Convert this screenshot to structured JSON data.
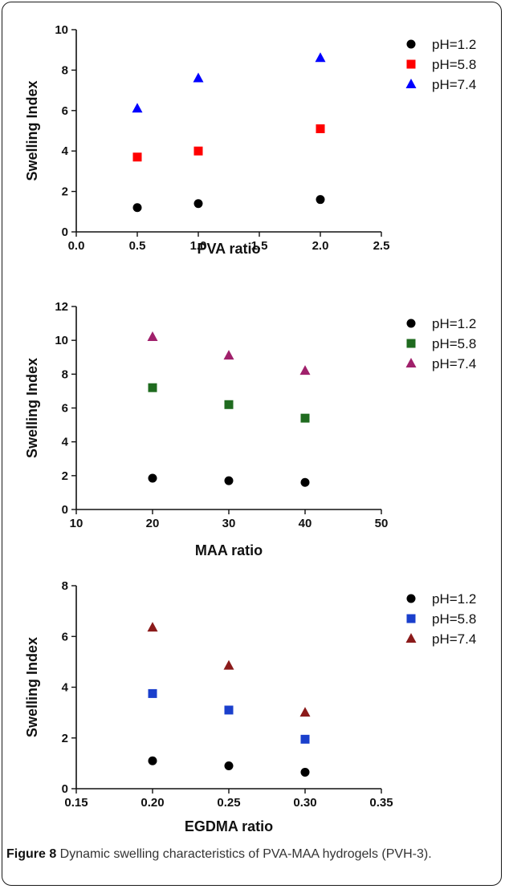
{
  "chart_data": [
    {
      "type": "scatter",
      "xlabel": "PVA ratio",
      "ylabel": "Swelling Index",
      "xlim": [
        0.0,
        2.5
      ],
      "ylim": [
        0,
        10
      ],
      "xticks": [
        "0.0",
        "0.5",
        "1.0",
        "1.5",
        "2.0",
        "2.5"
      ],
      "yticks": [
        "0",
        "2",
        "4",
        "6",
        "8",
        "10"
      ],
      "legend_position": "top-right",
      "series": [
        {
          "name": "pH=1.2",
          "marker": "circle",
          "color": "#000000",
          "x": [
            0.5,
            1.0,
            2.0
          ],
          "y": [
            1.2,
            1.4,
            1.6
          ]
        },
        {
          "name": "pH=5.8",
          "marker": "square",
          "color": "#ff0000",
          "x": [
            0.5,
            1.0,
            2.0
          ],
          "y": [
            3.7,
            4.0,
            5.1
          ]
        },
        {
          "name": "pH=7.4",
          "marker": "triangle",
          "color": "#0000ff",
          "x": [
            0.5,
            1.0,
            2.0
          ],
          "y": [
            6.1,
            7.6,
            8.6
          ]
        }
      ]
    },
    {
      "type": "scatter",
      "xlabel": "MAA ratio",
      "ylabel": "Swelling Index",
      "xlim": [
        10,
        50
      ],
      "ylim": [
        0,
        12
      ],
      "xticks": [
        "10",
        "20",
        "30",
        "40",
        "50"
      ],
      "yticks": [
        "0",
        "2",
        "4",
        "6",
        "8",
        "10",
        "12"
      ],
      "legend_position": "top-right",
      "series": [
        {
          "name": "pH=1.2",
          "marker": "circle",
          "color": "#000000",
          "x": [
            20,
            30,
            40
          ],
          "y": [
            1.85,
            1.7,
            1.6
          ]
        },
        {
          "name": "pH=5.8",
          "marker": "square",
          "color": "#1f6b1f",
          "x": [
            20,
            30,
            40
          ],
          "y": [
            7.2,
            6.2,
            5.4
          ]
        },
        {
          "name": "pH=7.4",
          "marker": "triangle",
          "color": "#a0206b",
          "x": [
            20,
            30,
            40
          ],
          "y": [
            10.2,
            9.1,
            8.2
          ]
        }
      ]
    },
    {
      "type": "scatter",
      "xlabel": "EGDMA ratio",
      "ylabel": "Swelling Index",
      "xlim": [
        0.15,
        0.35
      ],
      "ylim": [
        0,
        8
      ],
      "xticks": [
        "0.15",
        "0.20",
        "0.25",
        "0.30",
        "0.35"
      ],
      "yticks": [
        "0",
        "2",
        "4",
        "6",
        "8"
      ],
      "legend_position": "top-right",
      "series": [
        {
          "name": "pH=1.2",
          "marker": "circle",
          "color": "#000000",
          "x": [
            0.2,
            0.25,
            0.3
          ],
          "y": [
            1.1,
            0.9,
            0.65
          ]
        },
        {
          "name": "pH=5.8",
          "marker": "square",
          "color": "#1a3fcc",
          "x": [
            0.2,
            0.25,
            0.3
          ],
          "y": [
            3.75,
            3.1,
            1.95
          ]
        },
        {
          "name": "pH=7.4",
          "marker": "triangle",
          "color": "#8b1a1a",
          "x": [
            0.2,
            0.25,
            0.3
          ],
          "y": [
            6.35,
            4.85,
            3.0
          ]
        }
      ]
    }
  ],
  "caption": {
    "label": "Figure 8",
    "text": " Dynamic swelling characteristics of PVA-MAA hydrogels (PVH-3)."
  }
}
